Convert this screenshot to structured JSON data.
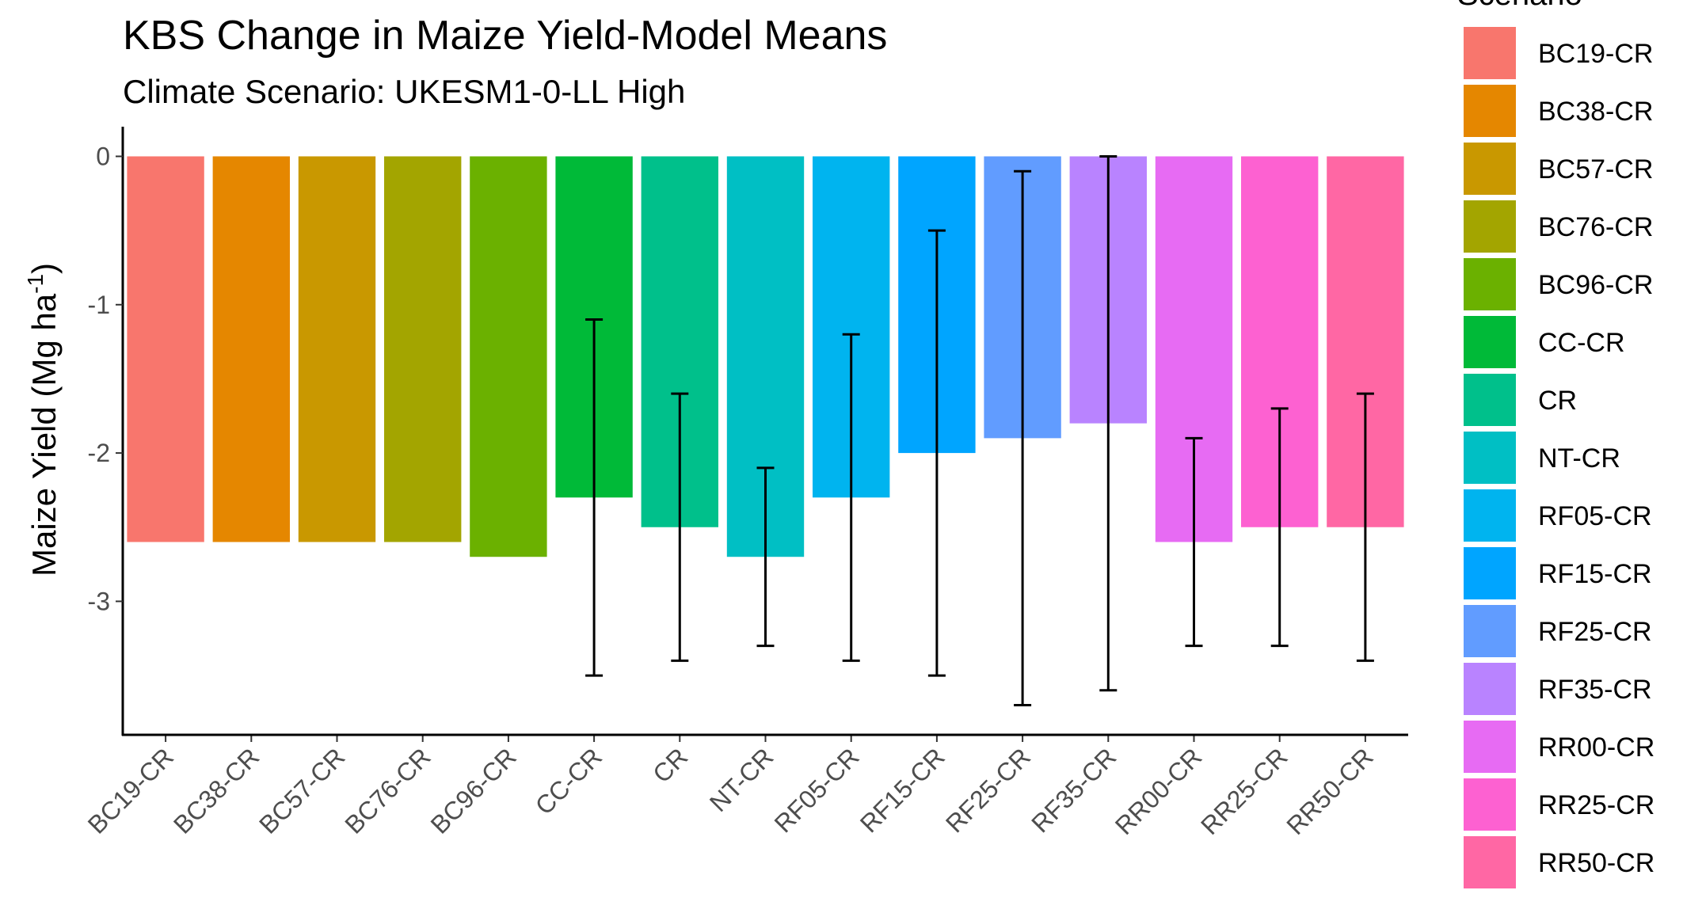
{
  "chart_data": {
    "type": "bar",
    "title": "KBS Change in Maize Yield-Model Means",
    "subtitle": "Climate Scenario: UKESM1-0-LL High",
    "ylabel_main": "Maize Yield (Mg ha",
    "ylabel_sup": "-1",
    "ylabel_close": ")",
    "xlabel": "",
    "ylim": [
      -3.9,
      0.2
    ],
    "yticks": [
      0,
      -1,
      -2,
      -3
    ],
    "grid": false,
    "legend": {
      "title": "Scenario",
      "position": "right"
    },
    "categories": [
      "BC19-CR",
      "BC38-CR",
      "BC57-CR",
      "BC76-CR",
      "BC96-CR",
      "CC-CR",
      "CR",
      "NT-CR",
      "RF05-CR",
      "RF15-CR",
      "RF25-CR",
      "RF35-CR",
      "RR00-CR",
      "RR25-CR",
      "RR50-CR"
    ],
    "values": [
      -2.6,
      -2.6,
      -2.6,
      -2.6,
      -2.7,
      -2.3,
      -2.5,
      -2.7,
      -2.3,
      -2.0,
      -1.9,
      -1.8,
      -2.6,
      -2.5,
      -2.5
    ],
    "error_low": [
      null,
      null,
      null,
      null,
      null,
      -3.5,
      -3.4,
      -3.3,
      -3.4,
      -3.5,
      -3.7,
      -3.6,
      -3.3,
      -3.3,
      -3.4
    ],
    "error_high": [
      null,
      null,
      null,
      null,
      null,
      -1.1,
      -1.6,
      -2.1,
      -1.2,
      -0.5,
      -0.1,
      0.0,
      -1.9,
      -1.7,
      -1.6
    ],
    "colors": [
      "#F8766D",
      "#E58700",
      "#C99800",
      "#A3A500",
      "#6BB100",
      "#00BA38",
      "#00C08B",
      "#00BFC4",
      "#00B4EF",
      "#00A5FF",
      "#619CFF",
      "#B983FF",
      "#E76BF3",
      "#FD61D1",
      "#FF67A4"
    ]
  }
}
